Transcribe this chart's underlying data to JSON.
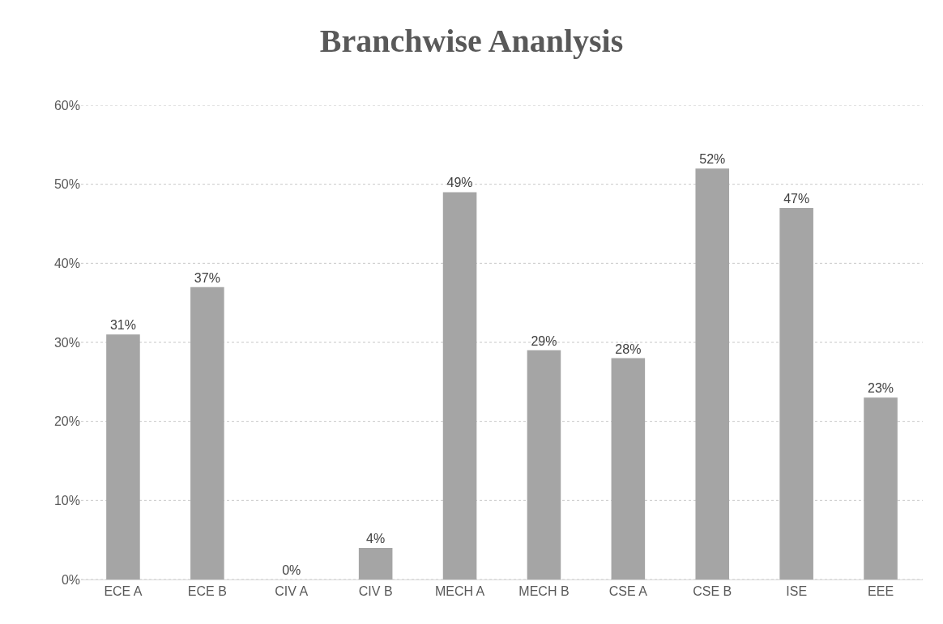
{
  "chart_data": {
    "type": "bar",
    "title": "Branchwise Ananlysis",
    "categories": [
      "ECE A",
      "ECE B",
      "CIV A",
      "CIV B",
      "MECH A",
      "MECH B",
      "CSE A",
      "CSE B",
      "ISE",
      "EEE"
    ],
    "values": [
      31,
      37,
      0,
      4,
      49,
      29,
      28,
      52,
      47,
      23
    ],
    "value_labels": [
      "31%",
      "37%",
      "0%",
      "4%",
      "49%",
      "29%",
      "28%",
      "52%",
      "47%",
      "23%"
    ],
    "color": "#a5a5a5",
    "ylim": [
      0,
      60
    ],
    "yticks": [
      {
        "value": 0,
        "label": "0%"
      },
      {
        "value": 10,
        "label": "10%"
      },
      {
        "value": 20,
        "label": "20%"
      },
      {
        "value": 30,
        "label": "30%"
      },
      {
        "value": 40,
        "label": "40%"
      },
      {
        "value": 50,
        "label": "50%"
      },
      {
        "value": 60,
        "label": "60%"
      }
    ],
    "grid": "y",
    "legend": false
  }
}
